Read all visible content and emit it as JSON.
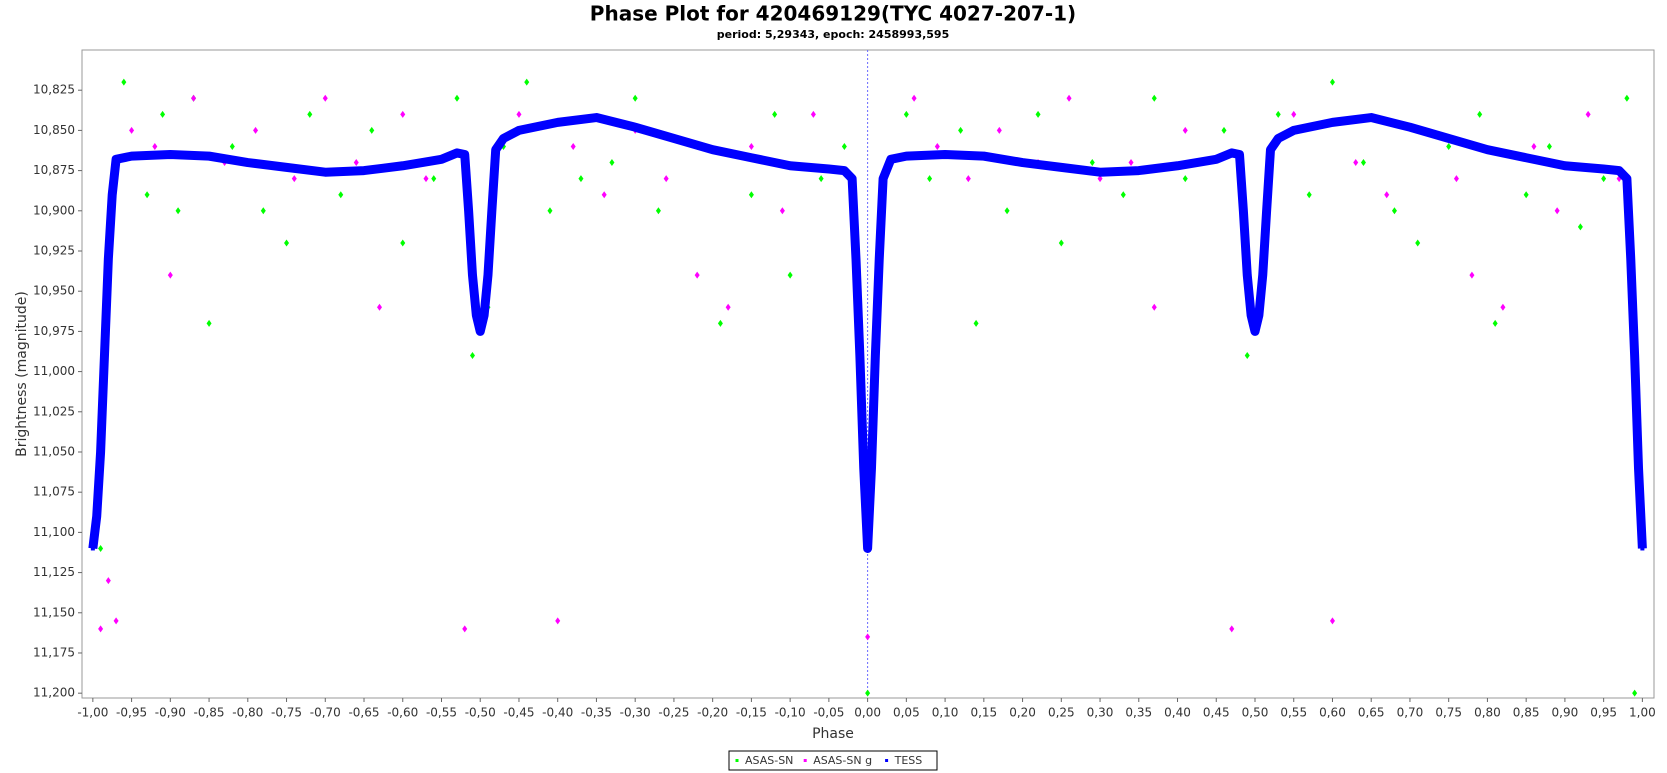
{
  "chart_data": {
    "type": "scatter",
    "title": "Phase Plot for 420469129(TYC 4027-207-1)",
    "subtitle": "period: 5,29343, epoch: 2458993,595",
    "x_label": "Phase",
    "y_label": "Brightness (magnitude)",
    "xlim": [
      -1.014,
      1.015
    ],
    "ylim": [
      10.8,
      11.203
    ],
    "y_inverted": true,
    "grid": false,
    "reference_line_x": 0,
    "legend_position": "bottom",
    "xticks": [
      {
        "value": -1,
        "label": "-1,00"
      },
      {
        "value": -0.95,
        "label": "-0,95"
      },
      {
        "value": -0.9,
        "label": "-0,90"
      },
      {
        "value": -0.85,
        "label": "-0,85"
      },
      {
        "value": -0.8,
        "label": "-0,80"
      },
      {
        "value": -0.75,
        "label": "-0,75"
      },
      {
        "value": -0.7,
        "label": "-0,70"
      },
      {
        "value": -0.65,
        "label": "-0,65"
      },
      {
        "value": -0.6,
        "label": "-0,60"
      },
      {
        "value": -0.55,
        "label": "-0,55"
      },
      {
        "value": -0.5,
        "label": "-0,50"
      },
      {
        "value": -0.45,
        "label": "-0,45"
      },
      {
        "value": -0.4,
        "label": "-0,40"
      },
      {
        "value": -0.35,
        "label": "-0,35"
      },
      {
        "value": -0.3,
        "label": "-0,30"
      },
      {
        "value": -0.25,
        "label": "-0,25"
      },
      {
        "value": -0.2,
        "label": "-0,20"
      },
      {
        "value": -0.15,
        "label": "-0,15"
      },
      {
        "value": -0.1,
        "label": "-0,10"
      },
      {
        "value": -0.05,
        "label": "-0,05"
      },
      {
        "value": 0,
        "label": "0,00"
      },
      {
        "value": 0.05,
        "label": "0,05"
      },
      {
        "value": 0.1,
        "label": "0,10"
      },
      {
        "value": 0.15,
        "label": "0,15"
      },
      {
        "value": 0.2,
        "label": "0,20"
      },
      {
        "value": 0.25,
        "label": "0,25"
      },
      {
        "value": 0.3,
        "label": "0,30"
      },
      {
        "value": 0.35,
        "label": "0,35"
      },
      {
        "value": 0.4,
        "label": "0,40"
      },
      {
        "value": 0.45,
        "label": "0,45"
      },
      {
        "value": 0.5,
        "label": "0,50"
      },
      {
        "value": 0.55,
        "label": "0,55"
      },
      {
        "value": 0.6,
        "label": "0,60"
      },
      {
        "value": 0.65,
        "label": "0,65"
      },
      {
        "value": 0.7,
        "label": "0,70"
      },
      {
        "value": 0.75,
        "label": "0,75"
      },
      {
        "value": 0.8,
        "label": "0,80"
      },
      {
        "value": 0.85,
        "label": "0,85"
      },
      {
        "value": 0.9,
        "label": "0,90"
      },
      {
        "value": 0.95,
        "label": "0,95"
      },
      {
        "value": 1,
        "label": "1,00"
      }
    ],
    "yticks": [
      {
        "value": 10.825,
        "label": "10,825"
      },
      {
        "value": 10.85,
        "label": "10,850"
      },
      {
        "value": 10.875,
        "label": "10,875"
      },
      {
        "value": 10.9,
        "label": "10,900"
      },
      {
        "value": 10.925,
        "label": "10,925"
      },
      {
        "value": 10.95,
        "label": "10,950"
      },
      {
        "value": 10.975,
        "label": "10,975"
      },
      {
        "value": 11,
        "label": "11,000"
      },
      {
        "value": 11.025,
        "label": "11,025"
      },
      {
        "value": 11.05,
        "label": "11,050"
      },
      {
        "value": 11.075,
        "label": "11,075"
      },
      {
        "value": 11.1,
        "label": "11,100"
      },
      {
        "value": 11.125,
        "label": "11,125"
      },
      {
        "value": 11.15,
        "label": "11,150"
      },
      {
        "value": 11.175,
        "label": "11,175"
      },
      {
        "value": 11.2,
        "label": "11,200"
      }
    ],
    "series": [
      {
        "name": "ASAS-SN",
        "color": "#00ff00",
        "marker": "diamond",
        "x": [
          -0.99,
          -0.97,
          -0.96,
          -0.93,
          -0.91,
          -0.89,
          -0.87,
          -0.85,
          -0.82,
          -0.78,
          -0.75,
          -0.72,
          -0.68,
          -0.64,
          -0.6,
          -0.56,
          -0.53,
          -0.51,
          -0.49,
          -0.47,
          -0.44,
          -0.41,
          -0.37,
          -0.33,
          -0.3,
          -0.27,
          -0.22,
          -0.19,
          -0.15,
          -0.12,
          -0.1,
          -0.06,
          -0.03,
          0,
          0.02,
          0.05,
          0.08,
          0.12,
          0.14,
          0.18,
          0.22,
          0.25,
          0.29,
          0.33,
          0.37,
          0.41,
          0.46,
          0.49,
          0.51,
          0.53,
          0.57,
          0.6,
          0.64,
          0.68,
          0.71,
          0.75,
          0.79,
          0.81,
          0.85,
          0.88,
          0.92,
          0.95,
          0.98,
          0.99
        ],
        "values": [
          11.11,
          10.88,
          10.82,
          10.89,
          10.84,
          10.9,
          10.83,
          10.97,
          10.86,
          10.9,
          10.92,
          10.84,
          10.89,
          10.85,
          10.92,
          10.88,
          10.83,
          10.99,
          10.96,
          10.86,
          10.82,
          10.9,
          10.88,
          10.87,
          10.83,
          10.9,
          10.86,
          10.97,
          10.89,
          10.84,
          10.94,
          10.88,
          10.86,
          11.2,
          10.9,
          10.84,
          10.88,
          10.85,
          10.97,
          10.9,
          10.84,
          10.92,
          10.87,
          10.89,
          10.83,
          10.88,
          10.85,
          10.99,
          10.95,
          10.84,
          10.89,
          10.82,
          10.87,
          10.9,
          10.92,
          10.86,
          10.84,
          10.97,
          10.89,
          10.86,
          10.91,
          10.88,
          10.83,
          11.2
        ]
      },
      {
        "name": "ASAS-SN g",
        "color": "#ff00ff",
        "marker": "diamond",
        "x": [
          -0.99,
          -0.98,
          -0.97,
          -0.95,
          -0.92,
          -0.9,
          -0.87,
          -0.83,
          -0.79,
          -0.74,
          -0.7,
          -0.66,
          -0.63,
          -0.6,
          -0.57,
          -0.52,
          -0.48,
          -0.45,
          -0.4,
          -0.38,
          -0.34,
          -0.3,
          -0.26,
          -0.22,
          -0.18,
          -0.15,
          -0.11,
          -0.07,
          -0.02,
          0,
          0.03,
          0.06,
          0.09,
          0.13,
          0.17,
          0.22,
          0.26,
          0.3,
          0.34,
          0.37,
          0.41,
          0.47,
          0.52,
          0.55,
          0.6,
          0.63,
          0.67,
          0.72,
          0.76,
          0.78,
          0.82,
          0.86,
          0.89,
          0.93,
          0.97
        ],
        "values": [
          11.16,
          11.13,
          11.155,
          10.85,
          10.86,
          10.94,
          10.83,
          10.87,
          10.85,
          10.88,
          10.83,
          10.87,
          10.96,
          10.84,
          10.88,
          11.16,
          10.87,
          10.84,
          11.155,
          10.86,
          10.89,
          10.85,
          10.88,
          10.94,
          10.96,
          10.86,
          10.9,
          10.84,
          10.88,
          11.165,
          10.87,
          10.83,
          10.86,
          10.88,
          10.85,
          10.87,
          10.83,
          10.88,
          10.87,
          10.96,
          10.85,
          11.16,
          10.86,
          10.84,
          11.155,
          10.87,
          10.89,
          10.85,
          10.88,
          10.94,
          10.96,
          10.86,
          10.9,
          10.84,
          10.88
        ]
      },
      {
        "name": "TESS",
        "color": "#0000ff",
        "marker": "square",
        "connect": true,
        "x": [
          -1,
          -0.995,
          -0.99,
          -0.985,
          -0.98,
          -0.975,
          -0.97,
          -0.95,
          -0.9,
          -0.85,
          -0.8,
          -0.75,
          -0.7,
          -0.65,
          -0.6,
          -0.55,
          -0.53,
          -0.52,
          -0.515,
          -0.51,
          -0.505,
          -0.5,
          -0.495,
          -0.49,
          -0.485,
          -0.48,
          -0.47,
          -0.45,
          -0.4,
          -0.35,
          -0.3,
          -0.25,
          -0.2,
          -0.15,
          -0.1,
          -0.05,
          -0.03,
          -0.02,
          -0.015,
          -0.01,
          -0.005,
          0,
          0.005,
          0.01,
          0.015,
          0.02,
          0.03,
          0.05,
          0.1,
          0.15,
          0.2,
          0.25,
          0.3,
          0.35,
          0.4,
          0.45,
          0.47,
          0.48,
          0.485,
          0.49,
          0.495,
          0.5,
          0.505,
          0.51,
          0.515,
          0.52,
          0.53,
          0.55,
          0.6,
          0.65,
          0.7,
          0.75,
          0.8,
          0.85,
          0.9,
          0.95,
          0.97,
          0.98,
          0.985,
          0.99,
          0.995,
          1
        ],
        "values": [
          11.11,
          11.09,
          11.05,
          10.99,
          10.93,
          10.89,
          10.868,
          10.866,
          10.865,
          10.866,
          10.87,
          10.873,
          10.876,
          10.875,
          10.872,
          10.868,
          10.864,
          10.865,
          10.9,
          10.94,
          10.965,
          10.975,
          10.965,
          10.94,
          10.9,
          10.862,
          10.855,
          10.85,
          10.845,
          10.842,
          10.848,
          10.855,
          10.862,
          10.867,
          10.872,
          10.874,
          10.875,
          10.88,
          10.93,
          10.99,
          11.06,
          11.11,
          11.06,
          10.99,
          10.93,
          10.88,
          10.868,
          10.866,
          10.865,
          10.866,
          10.87,
          10.873,
          10.876,
          10.875,
          10.872,
          10.868,
          10.864,
          10.865,
          10.9,
          10.94,
          10.965,
          10.975,
          10.965,
          10.94,
          10.9,
          10.862,
          10.855,
          10.85,
          10.845,
          10.842,
          10.848,
          10.855,
          10.862,
          10.867,
          10.872,
          10.874,
          10.875,
          10.88,
          10.93,
          10.99,
          11.06,
          11.11
        ]
      }
    ]
  }
}
